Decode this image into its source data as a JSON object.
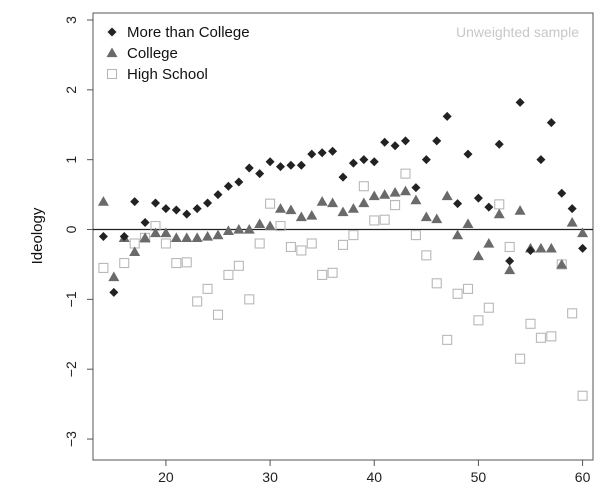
{
  "chart_data": {
    "type": "scatter",
    "title": "",
    "xlabel": "",
    "ylabel": "Ideology",
    "annotation": "Unweighted sample",
    "xlim": [
      13,
      61
    ],
    "ylim": [
      -3.3,
      3.1
    ],
    "xticks": [
      20,
      30,
      40,
      50,
      60
    ],
    "yticks": [
      -3,
      -2,
      -1,
      0,
      1,
      2,
      3
    ],
    "reference_line_y": 0,
    "grid": false,
    "legend_position": "top-left",
    "series": [
      {
        "name": "More than College",
        "marker": "diamond",
        "color": "#222222",
        "x": [
          14,
          15,
          16,
          17,
          18,
          19,
          20,
          21,
          22,
          23,
          24,
          25,
          26,
          27,
          28,
          29,
          30,
          31,
          32,
          33,
          34,
          35,
          36,
          37,
          38,
          39,
          40,
          41,
          42,
          43,
          44,
          45,
          46,
          47,
          48,
          49,
          50,
          51,
          52,
          53,
          54,
          55,
          56,
          57,
          58,
          59,
          60
        ],
        "y": [
          -0.1,
          -0.9,
          -0.1,
          0.4,
          0.1,
          0.38,
          0.3,
          0.28,
          0.22,
          0.3,
          0.38,
          0.5,
          0.62,
          0.68,
          0.88,
          0.8,
          0.97,
          0.9,
          0.92,
          0.92,
          1.08,
          1.1,
          1.12,
          0.75,
          0.95,
          1.0,
          0.97,
          1.25,
          1.2,
          1.27,
          0.6,
          1.0,
          1.27,
          1.62,
          0.37,
          1.08,
          0.45,
          0.32,
          1.22,
          -0.45,
          1.82,
          -0.3,
          1.0,
          1.53,
          0.52,
          0.3,
          -0.27
        ]
      },
      {
        "name": "College",
        "marker": "triangle",
        "color": "#6a6a6a",
        "x": [
          14,
          15,
          16,
          17,
          18,
          19,
          20,
          21,
          22,
          23,
          24,
          25,
          26,
          27,
          28,
          29,
          30,
          31,
          32,
          33,
          34,
          35,
          36,
          37,
          38,
          39,
          40,
          41,
          42,
          43,
          44,
          45,
          46,
          47,
          48,
          49,
          50,
          51,
          52,
          53,
          54,
          55,
          56,
          57,
          58,
          59,
          60
        ],
        "y": [
          0.4,
          -0.68,
          -0.12,
          -0.32,
          -0.12,
          -0.05,
          -0.05,
          -0.12,
          -0.12,
          -0.12,
          -0.1,
          -0.08,
          -0.02,
          0.0,
          0.0,
          0.08,
          0.05,
          0.3,
          0.28,
          0.18,
          0.2,
          0.4,
          0.38,
          0.25,
          0.3,
          0.38,
          0.48,
          0.5,
          0.53,
          0.55,
          0.42,
          0.18,
          0.15,
          0.48,
          -0.08,
          0.08,
          -0.38,
          -0.2,
          0.22,
          -0.58,
          0.27,
          -0.27,
          -0.27,
          -0.27,
          -0.5,
          0.1,
          -0.05
        ]
      },
      {
        "name": "High School",
        "marker": "open-square",
        "color": "#b8b8b8",
        "x": [
          14,
          16,
          17,
          18,
          19,
          20,
          21,
          22,
          23,
          24,
          25,
          26,
          27,
          28,
          29,
          30,
          31,
          32,
          33,
          34,
          35,
          36,
          37,
          38,
          39,
          40,
          41,
          42,
          43,
          44,
          45,
          46,
          47,
          48,
          49,
          50,
          51,
          52,
          53,
          54,
          55,
          56,
          57,
          58,
          59,
          60
        ],
        "y": [
          -0.55,
          -0.48,
          -0.2,
          -0.12,
          0.05,
          -0.2,
          -0.48,
          -0.47,
          -1.03,
          -0.85,
          -1.22,
          -0.65,
          -0.52,
          -1.0,
          -0.2,
          0.37,
          0.05,
          -0.25,
          -0.3,
          -0.2,
          -0.65,
          -0.62,
          -0.22,
          -0.08,
          0.62,
          0.13,
          0.14,
          0.35,
          0.8,
          -0.08,
          -0.37,
          -0.77,
          -1.58,
          -0.92,
          -0.85,
          -1.3,
          -1.12,
          0.36,
          -0.25,
          -1.85,
          -1.35,
          -1.55,
          -1.53,
          -0.5,
          -1.2,
          -2.38
        ]
      }
    ]
  }
}
